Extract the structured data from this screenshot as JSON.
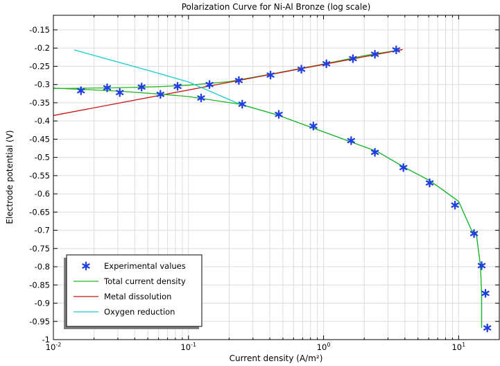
{
  "chart_data": {
    "type": "line",
    "title": "Polarization Curve for Ni-Al Bronze (log scale)",
    "xlabel": "Current density (A/m²)",
    "ylabel": "Electrode potential (V)",
    "xscale": "log",
    "xlim": [
      0.01,
      20
    ],
    "ylim": [
      -1.0,
      -0.11
    ],
    "grid": true,
    "legend_position": "lower-left",
    "x_ticks": [
      {
        "value": 0.01,
        "mantissa": "10",
        "exp": "-2"
      },
      {
        "value": 0.1,
        "mantissa": "10",
        "exp": "-1"
      },
      {
        "value": 1,
        "mantissa": "10",
        "exp": "0"
      },
      {
        "value": 10,
        "mantissa": "10",
        "exp": "1"
      }
    ],
    "y_ticks": [
      {
        "value": -0.15,
        "label": "-0.15"
      },
      {
        "value": -0.2,
        "label": "-0.2"
      },
      {
        "value": -0.25,
        "label": "-0.25"
      },
      {
        "value": -0.3,
        "label": "-0.3"
      },
      {
        "value": -0.35,
        "label": "-0.35"
      },
      {
        "value": -0.4,
        "label": "-0.4"
      },
      {
        "value": -0.45,
        "label": "-0.45"
      },
      {
        "value": -0.5,
        "label": "-0.5"
      },
      {
        "value": -0.55,
        "label": "-0.55"
      },
      {
        "value": -0.6,
        "label": "-0.6"
      },
      {
        "value": -0.65,
        "label": "-0.65"
      },
      {
        "value": -0.7,
        "label": "-0.7"
      },
      {
        "value": -0.75,
        "label": "-0.75"
      },
      {
        "value": -0.8,
        "label": "-0.8"
      },
      {
        "value": -0.85,
        "label": "-0.85"
      },
      {
        "value": -0.9,
        "label": "-0.9"
      },
      {
        "value": -0.95,
        "label": "-0.95"
      },
      {
        "value": -1,
        "label": "-1"
      }
    ],
    "series": [
      {
        "name": "Experimental values",
        "kind": "markers",
        "marker": "asterisk",
        "color": "#1f3fe0",
        "x": [
          0.016,
          0.025,
          0.031,
          0.045,
          0.062,
          0.083,
          0.124,
          0.143,
          0.236,
          0.25,
          0.405,
          0.466,
          0.685,
          0.84,
          1.05,
          1.6,
          1.65,
          2.4,
          2.4,
          3.45,
          3.9,
          6.1,
          9.4,
          13.0,
          14.8,
          15.8,
          16.3
        ],
        "y": [
          -0.317,
          -0.309,
          -0.322,
          -0.307,
          -0.327,
          -0.305,
          -0.337,
          -0.3,
          -0.289,
          -0.354,
          -0.274,
          -0.382,
          -0.258,
          -0.414,
          -0.243,
          -0.454,
          -0.229,
          -0.486,
          -0.217,
          -0.205,
          -0.528,
          -0.57,
          -0.631,
          -0.709,
          -0.797,
          -0.873,
          -0.968
        ]
      },
      {
        "name": "Total current density",
        "kind": "line",
        "color": "#22b522",
        "x": [
          0.01,
          0.03,
          0.06,
          0.1,
          0.2,
          0.4,
          1.0,
          2.0,
          3.85
        ],
        "y": [
          -0.311,
          -0.309,
          -0.306,
          -0.302,
          -0.292,
          -0.272,
          -0.244,
          -0.221,
          -0.204
        ]
      },
      {
        "name": "Metal dissolution",
        "kind": "line",
        "color": "#c81414",
        "x": [
          0.01,
          3.85
        ],
        "y": [
          -0.385,
          -0.204
        ]
      },
      {
        "name": "Oxygen reduction",
        "kind": "line",
        "color": "#17cccc",
        "x": [
          0.0142,
          0.05,
          0.1,
          0.24,
          0.45,
          1.0,
          2.5,
          4.0,
          6.0,
          7.5,
          10.0,
          12.5,
          13.5,
          14.5,
          14.8,
          14.8
        ],
        "y": [
          -0.205,
          -0.261,
          -0.293,
          -0.354,
          -0.383,
          -0.43,
          -0.484,
          -0.528,
          -0.562,
          -0.587,
          -0.621,
          -0.701,
          -0.709,
          -0.797,
          -0.875,
          -0.968
        ]
      },
      {
        "name": "",
        "kind": "line",
        "color": "#22b522",
        "x": [
          0.01,
          0.03,
          0.06,
          0.1,
          0.24,
          0.45,
          1.0,
          2.5,
          4.0,
          6.0,
          7.5,
          10.0,
          12.5,
          13.5,
          14.5,
          14.8,
          14.8
        ],
        "y": [
          -0.31,
          -0.318,
          -0.326,
          -0.333,
          -0.354,
          -0.383,
          -0.43,
          -0.484,
          -0.528,
          -0.562,
          -0.587,
          -0.621,
          -0.701,
          -0.709,
          -0.797,
          -0.875,
          -0.968
        ]
      }
    ]
  }
}
